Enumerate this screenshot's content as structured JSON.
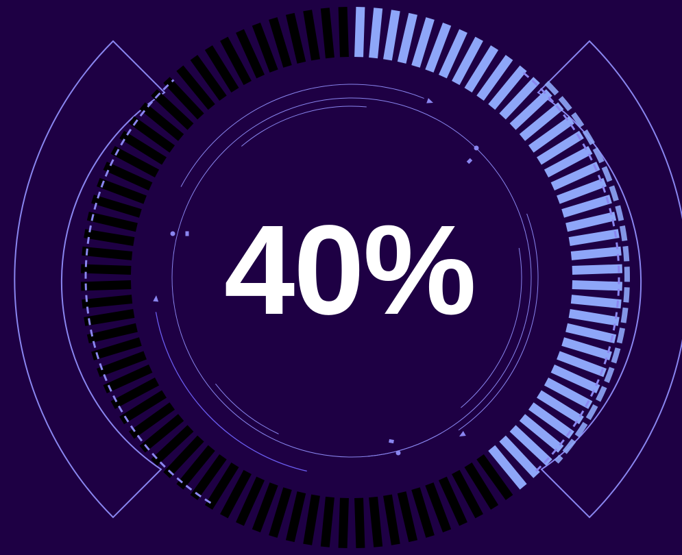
{
  "gauge": {
    "progress": 0.4,
    "label": "40%",
    "segments": 96,
    "colors": {
      "background": "#1e0044",
      "filled": "#8ea6f8",
      "unfilled": "#000000",
      "line": "#8a86f0",
      "accent": "#6b5cf0",
      "text": "#ffffff"
    }
  }
}
